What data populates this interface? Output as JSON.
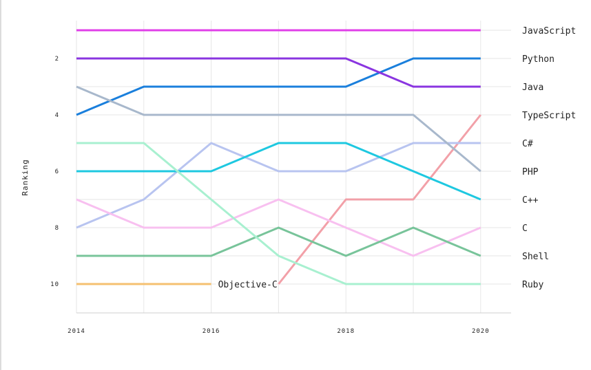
{
  "chart_data": {
    "type": "line",
    "title": "",
    "ylabel": "Ranking",
    "xlabel": "",
    "x": [
      2014,
      2015,
      2016,
      2017,
      2018,
      2019,
      2020
    ],
    "x_tick_labels": [
      "2014",
      "2016",
      "2018",
      "2020"
    ],
    "y_tick_labels": [
      "2",
      "4",
      "6",
      "8",
      "10"
    ],
    "ylim": [
      11,
      0.8
    ],
    "y_inverted": true,
    "grid": true,
    "series": [
      {
        "name": "JavaScript",
        "color": "#e040e8",
        "values": [
          1,
          1,
          1,
          1,
          1,
          1,
          1
        ]
      },
      {
        "name": "Python",
        "color": "#1a7fdc",
        "values": [
          4,
          3,
          3,
          3,
          3,
          2,
          2
        ]
      },
      {
        "name": "Java",
        "color": "#8a35e0",
        "values": [
          2,
          2,
          2,
          2,
          2,
          3,
          3
        ]
      },
      {
        "name": "TypeScript",
        "color": "#f2a0a8",
        "values": [
          null,
          null,
          null,
          10,
          7,
          7,
          4
        ]
      },
      {
        "name": "C#",
        "color": "#b8c4f0",
        "values": [
          8,
          7,
          5,
          6,
          6,
          5,
          5
        ]
      },
      {
        "name": "PHP",
        "color": "#a8b8cc",
        "values": [
          3,
          4,
          4,
          4,
          4,
          4,
          6
        ]
      },
      {
        "name": "C++",
        "color": "#1ec8e0",
        "values": [
          6,
          6,
          6,
          5,
          5,
          6,
          7
        ]
      },
      {
        "name": "C",
        "color": "#f8c0f0",
        "values": [
          7,
          8,
          8,
          7,
          8,
          9,
          8
        ]
      },
      {
        "name": "Shell",
        "color": "#78c49a",
        "values": [
          9,
          9,
          9,
          8,
          9,
          8,
          9
        ]
      },
      {
        "name": "Ruby",
        "color": "#a8f0d0",
        "values": [
          5,
          5,
          7,
          9,
          10,
          10,
          10
        ]
      },
      {
        "name": "Objective-C",
        "color": "#f5c070",
        "values": [
          10,
          10,
          10,
          null,
          null,
          null,
          null
        ]
      }
    ],
    "end_labels": [
      "JavaScript",
      "Python",
      "Java",
      "TypeScript",
      "C#",
      "PHP",
      "C++",
      "C",
      "Shell",
      "Ruby"
    ],
    "inline_label": {
      "text": "Objective-C",
      "series": "Objective-C"
    }
  }
}
